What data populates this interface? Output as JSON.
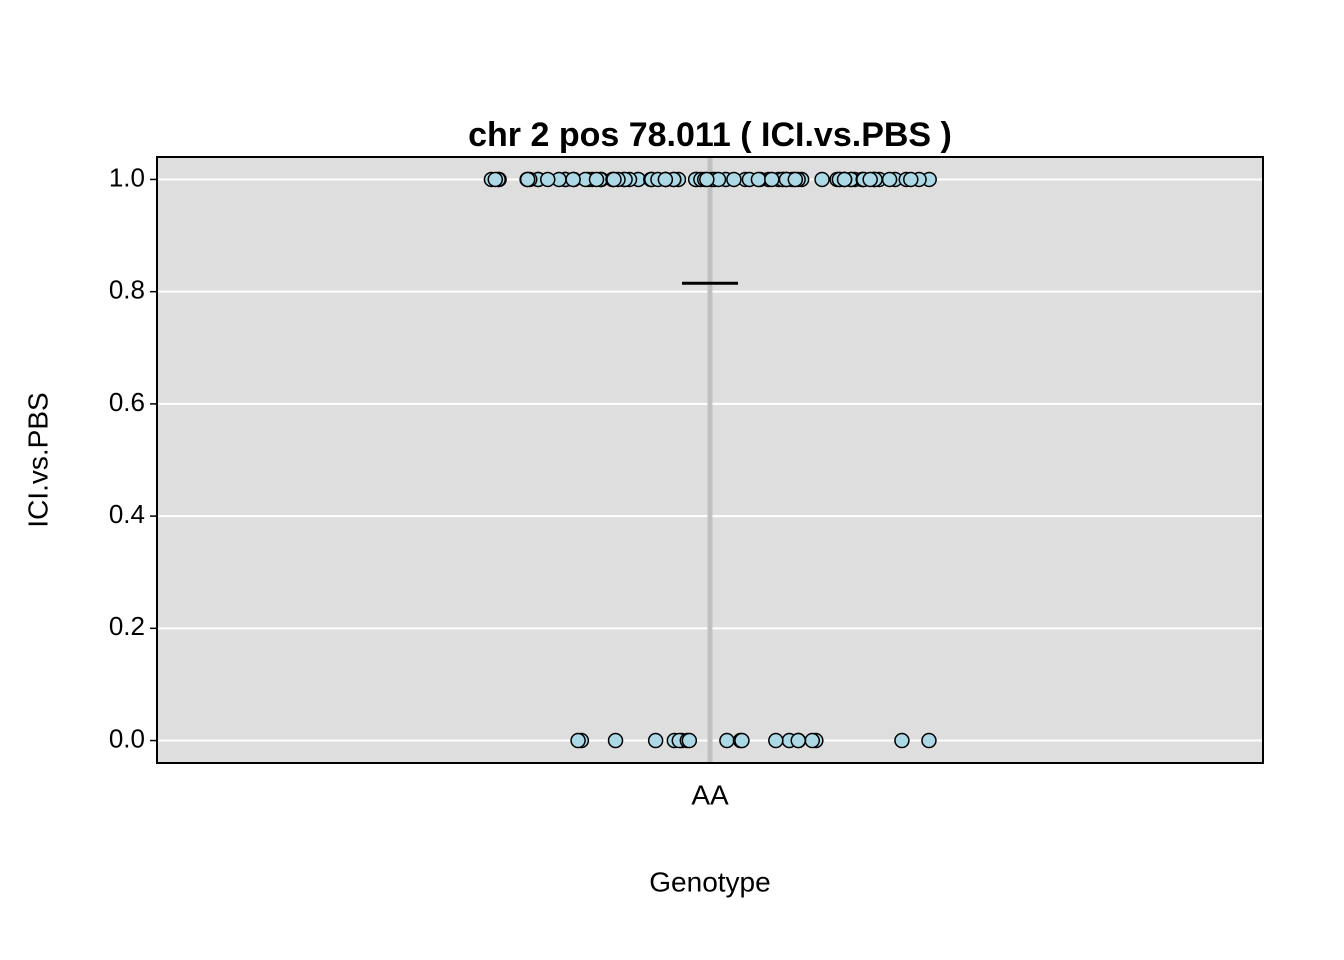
{
  "chart_data": {
    "type": "strip",
    "title": "chr 2 pos 78.011 ( ICI.vs.PBS )",
    "x_label": "Genotype",
    "y_label": "ICI.vs.PBS",
    "categories": [
      "AA"
    ],
    "values": [
      1,
      1,
      1,
      1,
      0,
      1,
      1,
      1,
      1,
      1,
      0,
      1,
      1,
      1,
      1,
      1,
      0,
      1,
      1,
      1,
      1,
      1,
      0,
      1,
      1,
      1,
      1,
      1,
      0,
      1,
      1,
      1,
      1,
      1,
      0,
      1,
      1,
      1,
      1,
      1,
      0,
      1,
      1,
      1,
      1,
      1,
      0,
      1,
      1,
      1,
      1,
      1,
      0,
      1,
      1,
      1,
      1,
      1,
      0,
      1,
      1,
      1,
      1,
      1,
      0,
      1,
      1,
      1,
      1,
      1,
      0,
      1,
      1,
      1,
      1,
      1,
      0,
      1,
      1,
      1,
      1,
      1,
      0,
      1,
      1,
      1,
      1,
      1,
      0,
      1,
      1,
      1,
      1,
      1,
      0,
      1,
      1,
      0,
      1,
      1,
      0,
      1,
      1,
      0,
      1,
      1,
      0,
      1
    ],
    "mean": 0.815,
    "color": "#add8e6",
    "ylim": [
      -0.04,
      1.04
    ],
    "yticks": [
      {
        "value": 0,
        "label": "0.0"
      },
      0.2,
      0.4,
      0.6,
      0.8,
      {
        "value": 1,
        "label": "1.0"
      }
    ],
    "grid": true
  }
}
